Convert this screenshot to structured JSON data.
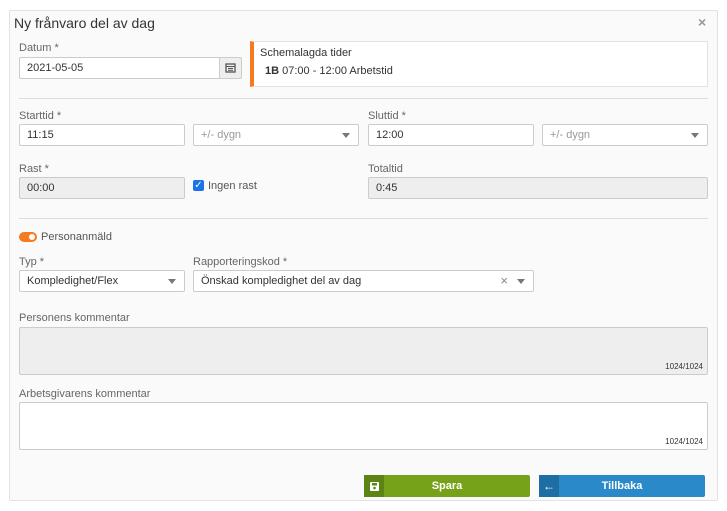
{
  "dialog": {
    "title": "Ny frånvaro del av dag",
    "close": "×"
  },
  "date": {
    "label": "Datum *",
    "value": "2021-05-05"
  },
  "schedule": {
    "title": "Schemalagda tider",
    "code": "1B",
    "entry": "07:00 - 12:00 Arbetstid",
    "accent": "#f47b20"
  },
  "start": {
    "label": "Starttid *",
    "value": "11:15",
    "day_placeholder": "+/- dygn"
  },
  "end": {
    "label": "Sluttid *",
    "value": "12:00",
    "day_placeholder": "+/- dygn"
  },
  "break": {
    "label": "Rast *",
    "value": "00:00",
    "no_break_label": "Ingen rast",
    "no_break_checked": true
  },
  "total": {
    "label": "Totaltid",
    "value": "0:45"
  },
  "reported": {
    "label": "Personanmäld",
    "on": true
  },
  "type": {
    "label": "Typ *",
    "value": "Kompledighet/Flex"
  },
  "code": {
    "label": "Rapporteringskod *",
    "value": "Önskad kompledighet del av dag",
    "clear": "×"
  },
  "person_comment": {
    "label": "Personens kommentar",
    "counter": "1024/1024"
  },
  "employer_comment": {
    "label": "Arbetsgivarens kommentar",
    "counter": "1024/1024"
  },
  "buttons": {
    "save": "Spara",
    "back": "Tillbaka",
    "save_color": "#76a21a",
    "back_color": "#2a8ac9"
  }
}
